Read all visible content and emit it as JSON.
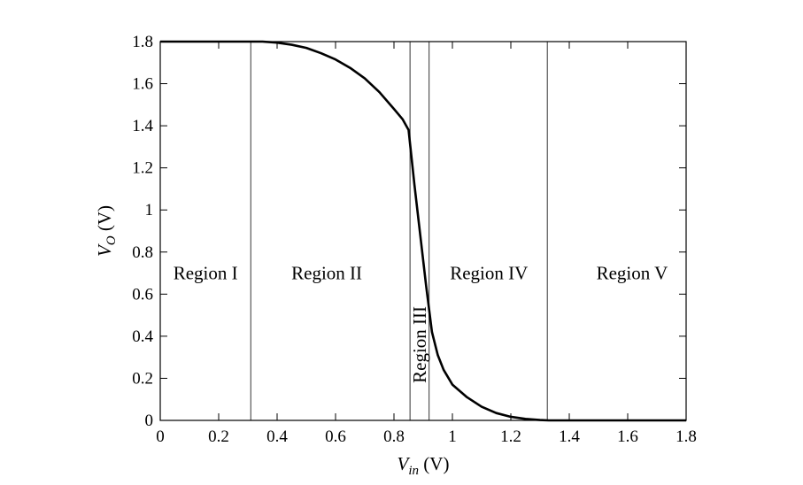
{
  "chart_data": {
    "type": "line",
    "title": "",
    "xlabel": {
      "main": "V",
      "sub": "in",
      "unit": " (V)"
    },
    "ylabel": {
      "main": "V",
      "sub": "O",
      "unit": " (V)"
    },
    "xlim": [
      0,
      1.8
    ],
    "ylim": [
      0,
      1.8
    ],
    "grid": false,
    "x_ticks": [
      0,
      0.2,
      0.4,
      0.6,
      0.8,
      1.0,
      1.2,
      1.4,
      1.6,
      1.8
    ],
    "x_tick_labels": [
      "0",
      "0.2",
      "0.4",
      "0.6",
      "0.8",
      "1",
      "1.2",
      "1.4",
      "1.6",
      "1.8"
    ],
    "y_ticks": [
      0,
      0.2,
      0.4,
      0.6,
      0.8,
      1.0,
      1.2,
      1.4,
      1.6,
      1.8
    ],
    "y_tick_labels": [
      "0",
      "0.2",
      "0.4",
      "0.6",
      "0.8",
      "1",
      "1.2",
      "1.4",
      "1.6",
      "1.8"
    ],
    "series": [
      {
        "x": [
          0,
          0.1,
          0.2,
          0.3,
          0.35,
          0.4,
          0.45,
          0.5,
          0.55,
          0.6,
          0.65,
          0.7,
          0.75,
          0.8,
          0.83,
          0.85,
          0.87,
          0.89,
          0.91,
          0.93,
          0.95,
          0.97,
          1.0,
          1.05,
          1.1,
          1.15,
          1.2,
          1.25,
          1.3,
          1.33,
          1.4,
          1.5,
          1.6,
          1.7,
          1.8
        ],
        "y": [
          1.8,
          1.8,
          1.8,
          1.8,
          1.8,
          1.795,
          1.785,
          1.77,
          1.745,
          1.715,
          1.675,
          1.625,
          1.56,
          1.48,
          1.43,
          1.38,
          1.12,
          0.88,
          0.64,
          0.42,
          0.31,
          0.24,
          0.17,
          0.11,
          0.065,
          0.035,
          0.017,
          0.007,
          0.002,
          0.0,
          0.0,
          0.0,
          0.0,
          0.0,
          0.0
        ]
      }
    ],
    "boundaries": [
      0.31,
      0.855,
      0.92,
      1.325
    ],
    "regions": [
      {
        "label": "Region I",
        "x": 0.155,
        "y": 0.7,
        "vertical": false
      },
      {
        "label": "Region II",
        "x": 0.57,
        "y": 0.7,
        "vertical": false
      },
      {
        "label": "Region III",
        "x": 0.888,
        "y": 0.36,
        "vertical": true
      },
      {
        "label": "Region IV",
        "x": 1.125,
        "y": 0.7,
        "vertical": false
      },
      {
        "label": "Region V",
        "x": 1.615,
        "y": 0.7,
        "vertical": false
      }
    ],
    "line_color": "#000000"
  }
}
